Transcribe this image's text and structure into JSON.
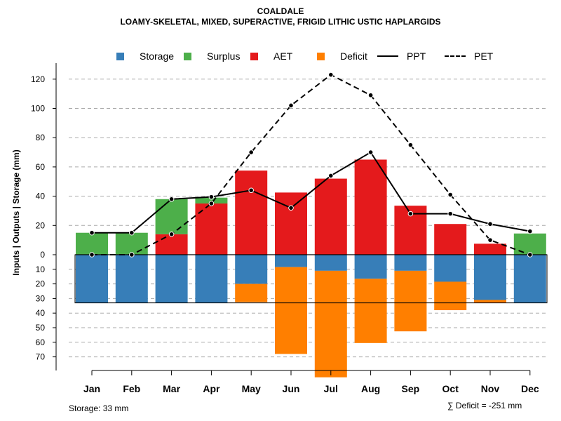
{
  "chart_data": {
    "type": "bar+line",
    "title": "COALDALE",
    "subtitle": "LOAMY-SKELETAL, MIXED, SUPERACTIVE, FRIGID LITHIC USTIC HAPLARGIDS",
    "ylabel": "Inputs | Outputs | Storage    (mm)",
    "months": [
      "Jan",
      "Feb",
      "Mar",
      "Apr",
      "May",
      "Jun",
      "Jul",
      "Aug",
      "Sep",
      "Oct",
      "Nov",
      "Dec"
    ],
    "upper_ticks": [
      "0",
      "20",
      "40",
      "60",
      "80",
      "100",
      "120"
    ],
    "lower_ticks": [
      "10",
      "20",
      "30",
      "40",
      "50",
      "60",
      "70"
    ],
    "upper_ylim": [
      0,
      125
    ],
    "lower_ylim": [
      0,
      75
    ],
    "legend": [
      {
        "key": "storage",
        "label": "Storage",
        "color": "#377EB8",
        "kind": "box"
      },
      {
        "key": "surplus",
        "label": "Surplus",
        "color": "#4DAF4A",
        "kind": "box"
      },
      {
        "key": "aet",
        "label": "AET",
        "color": "#E41A1C",
        "kind": "box"
      },
      {
        "key": "deficit",
        "label": "Deficit",
        "color": "#FF7F00",
        "kind": "box"
      },
      {
        "key": "ppt",
        "label": "PPT",
        "color": "#000000",
        "kind": "solid"
      },
      {
        "key": "pet",
        "label": "PET",
        "color": "#000000",
        "kind": "dashed"
      }
    ],
    "series": {
      "AET": [
        0,
        0,
        14,
        35,
        57.5,
        42.5,
        52,
        65,
        33.5,
        21,
        7.5,
        0
      ],
      "Surplus": [
        15,
        15,
        24,
        4,
        0,
        0,
        0,
        0,
        0,
        0,
        0,
        14.5
      ],
      "Storage": [
        33,
        33,
        33,
        33,
        20,
        8.5,
        11,
        16.5,
        11,
        18.5,
        31,
        33
      ],
      "Deficit": [
        0,
        0,
        0,
        0,
        12.5,
        59.5,
        73,
        44,
        41.5,
        19.5,
        2,
        0
      ],
      "PPT": [
        15,
        15,
        38,
        39.5,
        44,
        32,
        54,
        70,
        28,
        28,
        21,
        16
      ],
      "PET": [
        0,
        0,
        14,
        35,
        70,
        102,
        123,
        109,
        75,
        41,
        10,
        0
      ]
    },
    "storage_capacity": 33
  },
  "footer": {
    "storage_note": "Storage: 33 mm",
    "deficit_note": "∑ Deficit = -251 mm"
  }
}
